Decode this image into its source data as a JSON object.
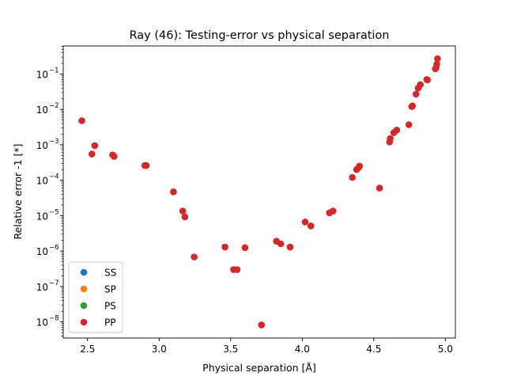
{
  "chart_data": {
    "type": "scatter",
    "title": "Ray (46): Testing-error vs physical separation",
    "xlabel": "Physical separation [Å]",
    "ylabel": "Relative error -1 [*]",
    "xlim": [
      2.33,
      5.07
    ],
    "ylim": [
      3.5e-09,
      0.62
    ],
    "yscale": "log",
    "grid": false,
    "legend_position": "lower left",
    "x_ticks": [
      2.5,
      3.0,
      3.5,
      4.0,
      4.5,
      5.0
    ],
    "x_tick_labels": [
      "2.5",
      "3.0",
      "3.5",
      "4.0",
      "4.5",
      "5.0"
    ],
    "y_tick_exponents": [
      -8,
      -7,
      -6,
      -5,
      -4,
      -3,
      -2,
      -1
    ],
    "series": [
      {
        "name": "SS",
        "color": "#1f77b4",
        "points": []
      },
      {
        "name": "SP",
        "color": "#ff7f0e",
        "points": []
      },
      {
        "name": "PS",
        "color": "#2ca02c",
        "points": []
      },
      {
        "name": "PP",
        "color": "#d62728",
        "points": [
          [
            2.46,
            0.0048
          ],
          [
            2.53,
            0.00055
          ],
          [
            2.55,
            0.00095
          ],
          [
            2.675,
            0.00052
          ],
          [
            2.685,
            0.00047
          ],
          [
            2.9,
            0.00026
          ],
          [
            2.91,
            0.00026
          ],
          [
            3.1,
            4.7e-05
          ],
          [
            3.165,
            1.35e-05
          ],
          [
            3.18,
            9.2e-06
          ],
          [
            3.245,
            6.8e-07
          ],
          [
            3.46,
            1.3e-06
          ],
          [
            3.52,
            3e-07
          ],
          [
            3.545,
            3e-07
          ],
          [
            3.6,
            1.25e-06
          ],
          [
            3.715,
            8.2e-09
          ],
          [
            3.82,
            1.9e-06
          ],
          [
            3.85,
            1.6e-06
          ],
          [
            3.915,
            1.3e-06
          ],
          [
            4.02,
            6.6e-06
          ],
          [
            4.06,
            5.1e-06
          ],
          [
            4.19,
            1.2e-05
          ],
          [
            4.215,
            1.35e-05
          ],
          [
            4.35,
            0.00012
          ],
          [
            4.38,
            0.0002
          ],
          [
            4.395,
            0.00023
          ],
          [
            4.4,
            0.00025
          ],
          [
            4.54,
            6e-05
          ],
          [
            4.61,
            0.0012
          ],
          [
            4.615,
            0.0015
          ],
          [
            4.64,
            0.0022
          ],
          [
            4.66,
            0.0026
          ],
          [
            4.745,
            0.0037
          ],
          [
            4.765,
            0.012
          ],
          [
            4.77,
            0.0125
          ],
          [
            4.795,
            0.027
          ],
          [
            4.81,
            0.04
          ],
          [
            4.825,
            0.05
          ],
          [
            4.87,
            0.07
          ],
          [
            4.875,
            0.068
          ],
          [
            4.93,
            0.14
          ],
          [
            4.935,
            0.15
          ],
          [
            4.94,
            0.19
          ],
          [
            4.945,
            0.27
          ]
        ]
      }
    ]
  }
}
